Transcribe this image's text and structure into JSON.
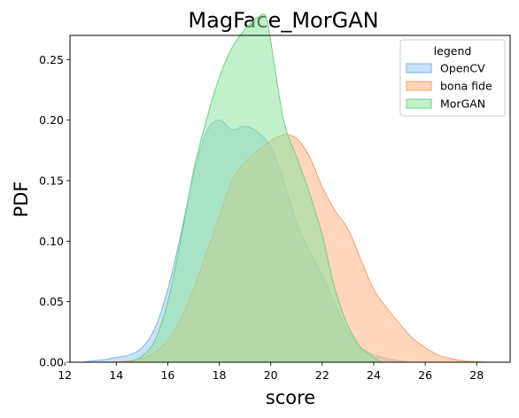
{
  "chart_data": {
    "type": "area",
    "title": "MagFace_MorGAN",
    "xlabel": "score",
    "ylabel": "PDF",
    "xlim": [
      12.2,
      29.3
    ],
    "ylim": [
      0,
      0.27
    ],
    "xticks": [
      12,
      14,
      16,
      18,
      20,
      22,
      24,
      26,
      28
    ],
    "yticks": [
      0.0,
      0.05,
      0.1,
      0.15,
      0.2,
      0.25
    ],
    "grid": false,
    "legend": {
      "title": "legend",
      "placement": "top-right",
      "entries": [
        "OpenCV",
        "bona fide",
        "MorGAN"
      ]
    },
    "series": [
      {
        "name": "OpenCV",
        "fill": "#a1c9f4",
        "edge": "#7fb2e8",
        "x": [
          12.7,
          13.0,
          13.5,
          14.0,
          14.5,
          15.0,
          15.5,
          16.0,
          16.5,
          17.0,
          17.5,
          18.0,
          18.5,
          19.0,
          19.5,
          20.0,
          20.5,
          21.0,
          21.5,
          22.0,
          22.5,
          23.0,
          23.5,
          24.0,
          24.5,
          25.0,
          25.3
        ],
        "y": [
          0.0,
          0.001,
          0.002,
          0.004,
          0.006,
          0.012,
          0.028,
          0.06,
          0.105,
          0.155,
          0.19,
          0.2,
          0.192,
          0.195,
          0.19,
          0.178,
          0.15,
          0.115,
          0.092,
          0.072,
          0.048,
          0.025,
          0.012,
          0.006,
          0.003,
          0.001,
          0.0
        ]
      },
      {
        "name": "bona fide",
        "fill": "#ffb482",
        "edge": "#f0a070",
        "x": [
          13.8,
          14.5,
          15.0,
          15.5,
          16.0,
          16.5,
          17.0,
          17.5,
          18.0,
          18.5,
          19.0,
          19.5,
          20.0,
          20.5,
          21.0,
          21.5,
          22.0,
          22.5,
          23.0,
          23.5,
          24.0,
          24.5,
          25.0,
          25.5,
          26.0,
          26.5,
          27.0,
          27.5,
          28.0,
          28.5
        ],
        "y": [
          0.0,
          0.001,
          0.003,
          0.008,
          0.018,
          0.035,
          0.06,
          0.09,
          0.12,
          0.15,
          0.165,
          0.175,
          0.183,
          0.188,
          0.185,
          0.17,
          0.145,
          0.125,
          0.11,
          0.085,
          0.06,
          0.045,
          0.032,
          0.02,
          0.012,
          0.006,
          0.003,
          0.001,
          0.0005,
          0.0
        ]
      },
      {
        "name": "MorGAN",
        "fill": "#8de5a1",
        "edge": "#6fd087",
        "x": [
          14.5,
          15.0,
          15.5,
          16.0,
          16.5,
          17.0,
          17.5,
          18.0,
          18.5,
          19.0,
          19.5,
          19.8,
          20.0,
          20.5,
          21.0,
          21.5,
          22.0,
          22.5,
          23.0,
          23.5,
          24.0,
          24.3
        ],
        "y": [
          0.0,
          0.005,
          0.018,
          0.05,
          0.1,
          0.158,
          0.2,
          0.235,
          0.26,
          0.275,
          0.285,
          0.286,
          0.265,
          0.2,
          0.17,
          0.14,
          0.105,
          0.06,
          0.03,
          0.012,
          0.004,
          0.0
        ]
      }
    ]
  }
}
